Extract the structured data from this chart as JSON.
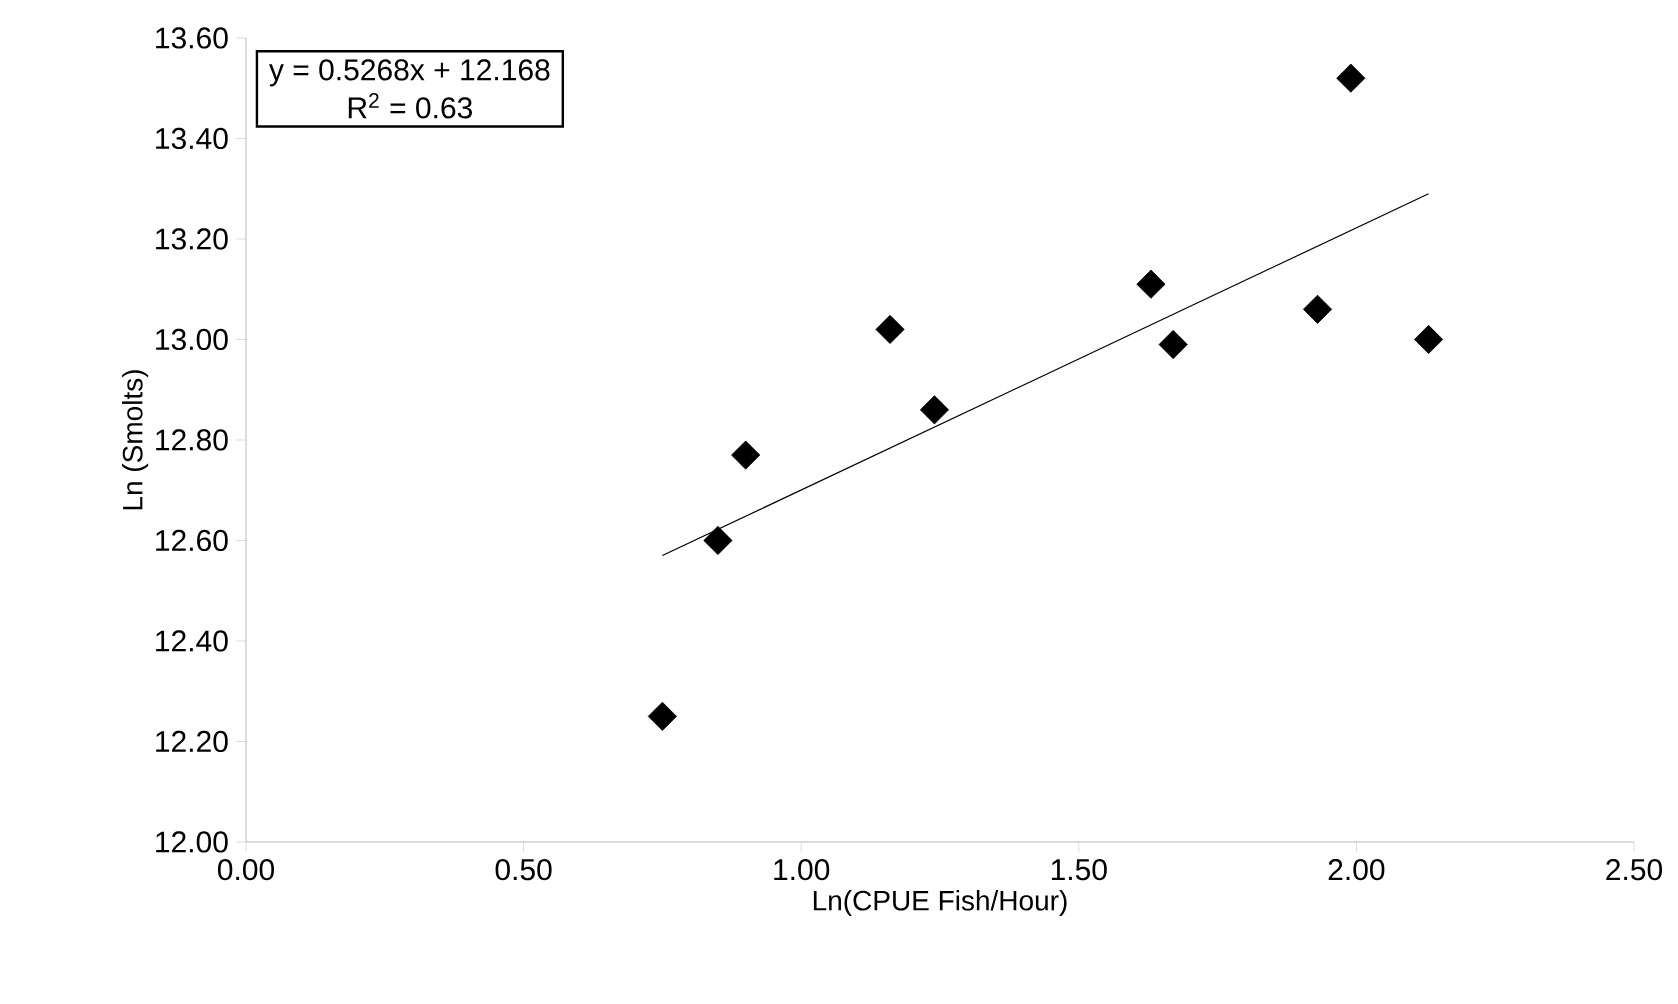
{
  "chart_data": {
    "type": "scatter",
    "xlabel": "Ln(CPUE Fish/Hour)",
    "ylabel": "Ln (Smolts)",
    "annotations": [
      "y = 0.5268x + 12.168",
      "R$^{2}$ = 0.63"
    ],
    "series": [
      {
        "color": "#000000",
        "marker": "diamond",
        "x": [
          0.75,
          0.85,
          0.9,
          1.16,
          1.24,
          1.63,
          1.67,
          1.93,
          1.99,
          2.13
        ],
        "values": [
          12.25,
          12.6,
          12.77,
          13.02,
          12.86,
          13.11,
          12.99,
          13.06,
          13.52,
          13.0
        ]
      },
      {
        "type": "line",
        "color": "#000000",
        "marker": "none",
        "x": [
          0.75,
          2.13
        ],
        "values": [
          12.57,
          13.29
        ]
      }
    ],
    "xlim": [
      0,
      2.5
    ],
    "ylim": [
      12,
      13.6
    ],
    "xticks": [
      {
        "value": 0,
        "label": "0.00"
      },
      {
        "value": 0.5,
        "label": "0.50"
      },
      {
        "value": 1,
        "label": "1.00"
      },
      {
        "value": 1.5,
        "label": "1.50"
      },
      {
        "value": 2,
        "label": "2.00"
      },
      {
        "value": 2.5,
        "label": "2.50"
      }
    ],
    "yticks": [
      {
        "value": 12,
        "label": "12.00"
      },
      {
        "value": 12.2,
        "label": "12.20"
      },
      {
        "value": 12.4,
        "label": "12.40"
      },
      {
        "value": 12.6,
        "label": "12.60"
      },
      {
        "value": 12.8,
        "label": "12.80"
      },
      {
        "value": 13,
        "label": "13.00"
      },
      {
        "value": 13.2,
        "label": "13.20"
      },
      {
        "value": 13.4,
        "label": "13.40"
      },
      {
        "value": 13.6,
        "label": "13.60"
      }
    ],
    "grid": false
  }
}
